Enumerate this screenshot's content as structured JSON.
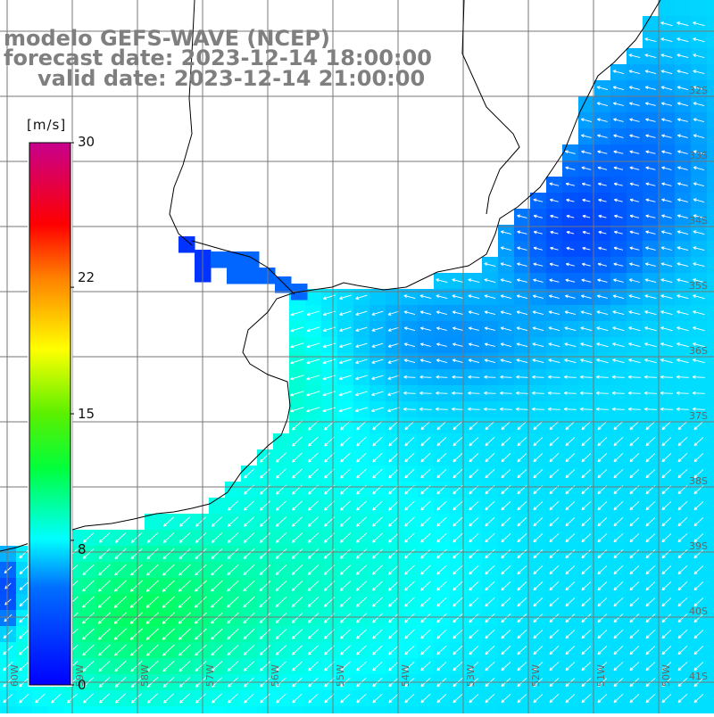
{
  "title": {
    "line1": "modelo GEFS-WAVE (NCEP)",
    "line2": "forecast date: 2023-12-14 18:00:00",
    "line3": "valid date: 2023-12-14 21:00:00"
  },
  "colorbar": {
    "unit": "[m/s]",
    "min": 0,
    "max": 30,
    "ticks": [
      "30",
      "22",
      "15",
      "8",
      "0"
    ],
    "tick_values": [
      30,
      22,
      15,
      8,
      0
    ],
    "colors": [
      "#0000ff",
      "#00aaff",
      "#00ffff",
      "#00ff44",
      "#44ee00",
      "#ffff00",
      "#ff8800",
      "#ff0000",
      "#dd0066",
      "#cc0099"
    ]
  },
  "map": {
    "lon_labels": [
      "60W",
      "59W",
      "58W",
      "57W",
      "56W",
      "55W",
      "54W",
      "53W",
      "52W",
      "51W",
      "50W"
    ],
    "lat_labels": [
      "32S",
      "33S",
      "34S",
      "35S",
      "36S",
      "37S",
      "38S",
      "39S",
      "40S",
      "41S"
    ],
    "land_color": "#ffffff",
    "coast_color": "#000000",
    "grid_color": "#777777",
    "arrow_color": "#ffffff"
  }
}
